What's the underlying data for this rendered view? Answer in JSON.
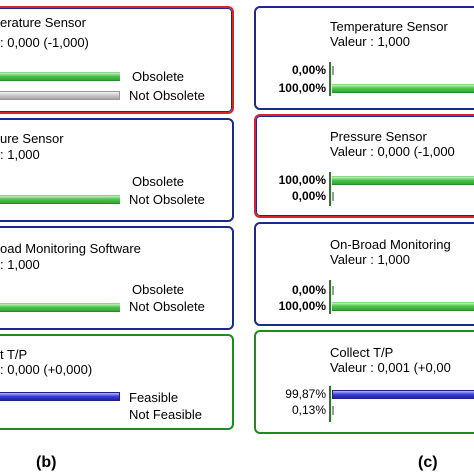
{
  "panel_b": {
    "caption": "(b)",
    "nodes": [
      {
        "title": "erature Sensor",
        "value": ": 0,000 (-1,000)",
        "labels": [
          "Obsolete",
          "Not Obsolete"
        ],
        "levels": [
          1,
          1
        ]
      },
      {
        "title": "ure Sensor",
        "value": ": 1,000",
        "labels": [
          "Obsolete",
          "Not Obsolete"
        ],
        "levels": [
          0,
          1
        ]
      },
      {
        "title": "oad Monitoring Software",
        "value": ": 1,000",
        "labels": [
          "Obsolete",
          "Not Obsolete"
        ],
        "levels": [
          0,
          1
        ]
      },
      {
        "title": "t T/P",
        "value": ": 0,000 (+0,000)",
        "labels": [
          "Feasible",
          "Not Feasible"
        ],
        "levels": [
          1,
          0
        ]
      }
    ]
  },
  "panel_c": {
    "caption": "(c)",
    "nodes": [
      {
        "title": "Temperature Sensor",
        "value": "Valeur : 1,000",
        "percents": [
          "0,00%",
          "100,00%"
        ],
        "levels": [
          0,
          1
        ]
      },
      {
        "title": "Pressure Sensor",
        "value": "Valeur : 0,000 (-1,000",
        "percents": [
          "100,00%",
          "0,00%"
        ],
        "levels": [
          1,
          0
        ]
      },
      {
        "title": "On-Broad Monitoring",
        "value": "Valeur : 1,000",
        "percents": [
          "0,00%",
          "100,00%"
        ],
        "levels": [
          0,
          1
        ]
      },
      {
        "title": "Collect T/P",
        "value": "Valeur : 0,001 (+0,00",
        "percents": [
          "99,87%",
          "0,13%"
        ],
        "levels": [
          0.9987,
          0.0013
        ]
      }
    ]
  },
  "colors": {
    "red_border": "#d9232e",
    "blue_border": "#1a2a8a",
    "green_border": "#1f8a1f",
    "bar_green": "#35a635",
    "bar_gray": "#a5a5a5",
    "bar_blue": "#2222b0"
  }
}
